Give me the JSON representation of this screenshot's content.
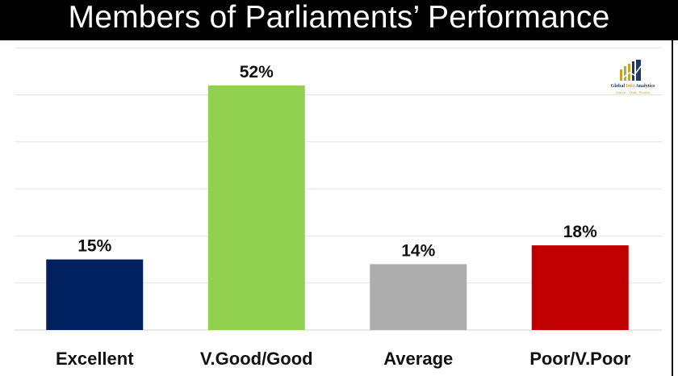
{
  "title": "Members of Parliaments’ Performance",
  "logo": {
    "name_part1": "Global ",
    "name_part2": "Info",
    "name_part3": " Analytics",
    "tagline": "Analyze · Think · Position",
    "icon": "bar-chart-arrow-logo"
  },
  "chart_data": {
    "type": "bar",
    "categories": [
      "Excellent",
      "V.Good/Good",
      "Average",
      "Poor/V.Poor"
    ],
    "values": [
      15,
      52,
      14,
      18
    ],
    "value_labels": [
      "15%",
      "52%",
      "14%",
      "18%"
    ],
    "colors": [
      "#002060",
      "#92D050",
      "#ADADAD",
      "#C00000"
    ],
    "title": "Members of Parliaments’ Performance",
    "xlabel": "",
    "ylabel": "",
    "ylim": [
      0,
      60
    ],
    "grid": true,
    "legend": "none"
  }
}
